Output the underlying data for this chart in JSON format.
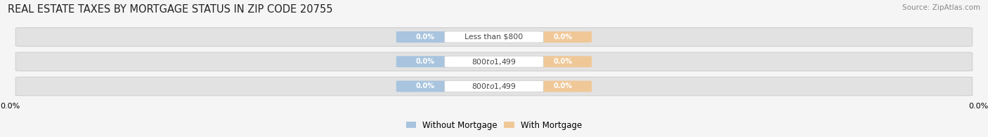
{
  "title": "REAL ESTATE TAXES BY MORTGAGE STATUS IN ZIP CODE 20755",
  "source": "Source: ZipAtlas.com",
  "categories": [
    "Less than $800",
    "$800 to $1,499",
    "$800 to $1,499"
  ],
  "without_mortgage_values": [
    0.0,
    0.0,
    0.0
  ],
  "with_mortgage_values": [
    0.0,
    0.0,
    0.0
  ],
  "without_mortgage_color": "#a8c4de",
  "with_mortgage_color": "#f0c898",
  "label_without": "Without Mortgage",
  "label_with": "With Mortgage",
  "title_fontsize": 10.5,
  "legend_fontsize": 8.5,
  "figsize": [
    14.06,
    1.96
  ],
  "dpi": 100,
  "bg_color": "#f5f5f5",
  "track_color": "#e2e2e2",
  "track_edge_color": "#d0d0d0",
  "white_label_color": "#ffffff",
  "center_label_color": "#444444"
}
